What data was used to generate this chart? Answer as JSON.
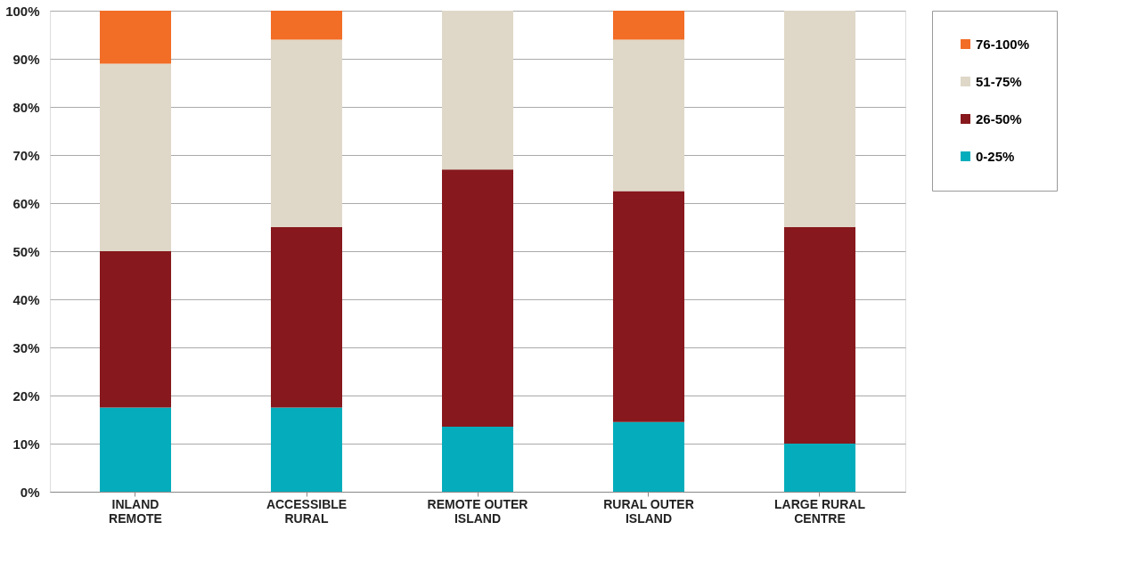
{
  "chart_data": {
    "type": "bar",
    "stacked": true,
    "categories": [
      "INLAND REMOTE",
      "ACCESSIBLE RURAL",
      "REMOTE OUTER ISLAND",
      "RURAL OUTER ISLAND",
      "LARGE RURAL CENTRE"
    ],
    "series": [
      {
        "name": "0-25%",
        "color": "#05adbc",
        "values": [
          17.5,
          17.5,
          13.5,
          14.5,
          10
        ]
      },
      {
        "name": "26-50%",
        "color": "#87181d",
        "values": [
          32.5,
          37.5,
          53.5,
          48,
          45
        ]
      },
      {
        "name": "51-75%",
        "color": "#dfd8c8",
        "values": [
          39,
          39,
          33,
          31.5,
          45
        ]
      },
      {
        "name": "76-100%",
        "color": "#f26d26",
        "values": [
          11,
          6,
          0,
          6,
          0
        ]
      }
    ],
    "ylim": [
      0,
      100
    ],
    "yticks": [
      {
        "value": 0,
        "label": "0%"
      },
      {
        "value": 10,
        "label": "10%"
      },
      {
        "value": 20,
        "label": "20%"
      },
      {
        "value": 30,
        "label": "30%"
      },
      {
        "value": 40,
        "label": "40%"
      },
      {
        "value": 50,
        "label": "50%"
      },
      {
        "value": 60,
        "label": "60%"
      },
      {
        "value": 70,
        "label": "70%"
      },
      {
        "value": 80,
        "label": "80%"
      },
      {
        "value": 90,
        "label": "90%"
      },
      {
        "value": 100,
        "label": "100%"
      }
    ],
    "grid": "y",
    "legend": "right"
  }
}
